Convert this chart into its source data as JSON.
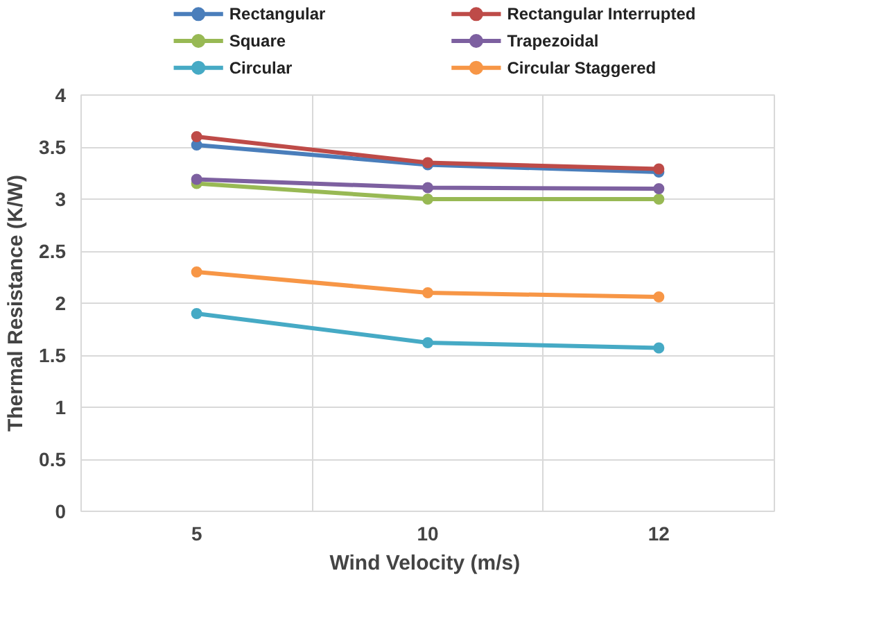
{
  "chart_data": {
    "type": "line",
    "xlabel": "Wind Velocity  (m/s)",
    "ylabel": "Thermal Resistance (K/W)",
    "categories": [
      "5",
      "10",
      "12"
    ],
    "ylim": [
      0,
      4
    ],
    "yticks": [
      0,
      0.5,
      1,
      1.5,
      2,
      2.5,
      3,
      3.5,
      4
    ],
    "grid": true,
    "legend": "top",
    "marker": "circle",
    "series": [
      {
        "name": "Rectangular",
        "color": "#4a7ebb",
        "values": [
          3.52,
          3.33,
          3.26
        ]
      },
      {
        "name": "Rectangular Interrupted",
        "color": "#be4b48",
        "values": [
          3.6,
          3.35,
          3.29
        ]
      },
      {
        "name": "Square",
        "color": "#98b954",
        "values": [
          3.15,
          3.0,
          3.0
        ]
      },
      {
        "name": "Trapezoidal",
        "color": "#7d60a0",
        "values": [
          3.19,
          3.11,
          3.1
        ]
      },
      {
        "name": "Circular",
        "color": "#46aac5",
        "values": [
          1.9,
          1.62,
          1.57
        ]
      },
      {
        "name": "Circular Staggered",
        "color": "#f79646",
        "values": [
          2.3,
          2.1,
          2.06
        ]
      }
    ]
  }
}
